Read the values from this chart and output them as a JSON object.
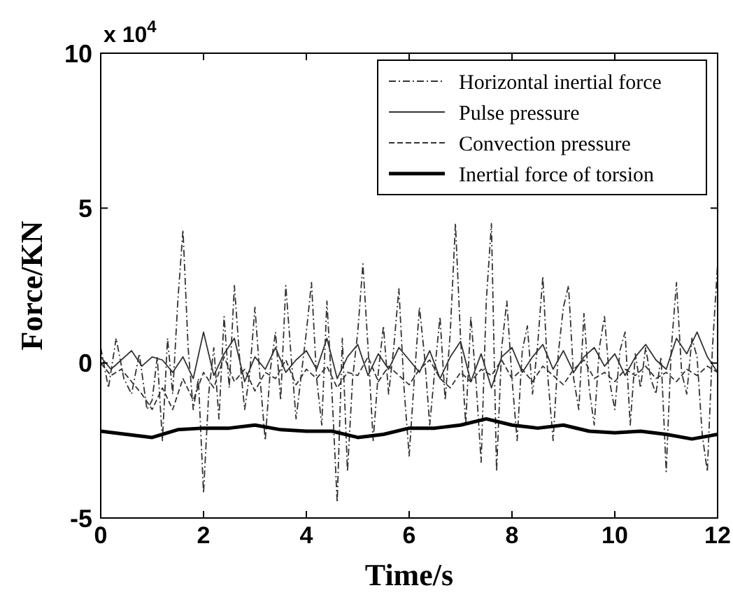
{
  "chart_data": {
    "type": "line",
    "xlabel": "Time/s",
    "ylabel": "Force/KN",
    "annotations": [
      "x 10$^{4}$"
    ],
    "xlim": [
      0,
      12
    ],
    "ylim": [
      -5,
      10
    ],
    "xticks": [
      0,
      2,
      4,
      6,
      8,
      10,
      12
    ],
    "yticks": [
      -5,
      0,
      5,
      10
    ],
    "legend": "top right",
    "grid": false,
    "series": [
      {
        "name": "Horizontal inertial force",
        "color": "#333333",
        "line_style": "dashdot",
        "x": [
          0,
          0.15,
          0.3,
          0.45,
          0.6,
          0.75,
          0.9,
          1.0,
          1.1,
          1.2,
          1.3,
          1.4,
          1.5,
          1.6,
          1.7,
          1.8,
          1.9,
          2.0,
          2.1,
          2.2,
          2.3,
          2.4,
          2.5,
          2.6,
          2.7,
          2.8,
          2.9,
          3.0,
          3.1,
          3.2,
          3.3,
          3.4,
          3.5,
          3.6,
          3.7,
          3.8,
          3.9,
          4.0,
          4.1,
          4.2,
          4.3,
          4.4,
          4.5,
          4.6,
          4.7,
          4.8,
          4.9,
          5.0,
          5.1,
          5.2,
          5.3,
          5.4,
          5.5,
          5.6,
          5.7,
          5.8,
          5.9,
          6.0,
          6.1,
          6.2,
          6.3,
          6.4,
          6.5,
          6.6,
          6.7,
          6.8,
          6.9,
          7.0,
          7.1,
          7.2,
          7.3,
          7.4,
          7.5,
          7.6,
          7.7,
          7.8,
          7.9,
          8.0,
          8.1,
          8.2,
          8.3,
          8.4,
          8.5,
          8.6,
          8.7,
          8.8,
          8.9,
          9.0,
          9.1,
          9.2,
          9.3,
          9.4,
          9.5,
          9.6,
          9.7,
          9.8,
          9.9,
          10.0,
          10.1,
          10.2,
          10.3,
          10.4,
          10.5,
          10.6,
          10.7,
          10.8,
          10.9,
          11.0,
          11.1,
          11.2,
          11.3,
          11.4,
          11.5,
          11.6,
          11.7,
          11.8,
          11.9,
          12.0
        ],
        "values": [
          0.5,
          -0.8,
          0.8,
          -0.5,
          -1.0,
          0.3,
          -1.5,
          -1.2,
          0.2,
          -2.5,
          0.8,
          -1.0,
          2.0,
          4.3,
          0.5,
          -1.5,
          -0.5,
          -4.2,
          -1.0,
          0.5,
          -1.8,
          1.5,
          -0.8,
          2.5,
          0.2,
          -1.5,
          -0.3,
          1.8,
          -0.5,
          -2.5,
          -0.2,
          1.0,
          -1.2,
          2.5,
          0.3,
          -1.8,
          -0.4,
          1.0,
          2.6,
          -0.5,
          -2.0,
          2.0,
          -1.0,
          -4.5,
          0.8,
          -3.5,
          -0.5,
          1.0,
          3.2,
          0.5,
          -2.5,
          -0.3,
          1.2,
          -1.0,
          0.5,
          2.4,
          -0.8,
          -3.0,
          -0.5,
          1.8,
          0.2,
          -2.0,
          -0.2,
          1.5,
          -1.2,
          1.0,
          4.5,
          0.8,
          -2.0,
          1.5,
          -0.6,
          -3.2,
          2.0,
          4.5,
          -3.5,
          0.5,
          2.0,
          -0.5,
          -2.5,
          0.4,
          1.2,
          -1.0,
          0.6,
          2.8,
          -0.5,
          -2.5,
          0.3,
          1.8,
          2.5,
          -0.5,
          -1.5,
          1.6,
          -0.8,
          -2.0,
          0.5,
          1.5,
          -0.6,
          -1.5,
          0.4,
          1.0,
          -2.0,
          0.3,
          -0.8,
          0.5,
          -0.5,
          -1.0,
          0.2,
          -3.5,
          0.5,
          2.6,
          -0.3,
          -1.0,
          0.8,
          0.2,
          -2.3,
          -3.5,
          0.5,
          3.2
        ]
      },
      {
        "name": "Pulse pressure",
        "color": "#333333",
        "line_style": "solid",
        "x": [
          0,
          0.2,
          0.4,
          0.6,
          0.8,
          1.0,
          1.2,
          1.4,
          1.6,
          1.8,
          2.0,
          2.2,
          2.4,
          2.6,
          2.8,
          3.0,
          3.2,
          3.4,
          3.6,
          3.8,
          4.0,
          4.2,
          4.4,
          4.6,
          4.8,
          5.0,
          5.2,
          5.4,
          5.6,
          5.8,
          6.0,
          6.2,
          6.4,
          6.6,
          6.8,
          7.0,
          7.2,
          7.4,
          7.6,
          7.8,
          8.0,
          8.2,
          8.4,
          8.6,
          8.8,
          9.0,
          9.2,
          9.4,
          9.6,
          9.8,
          10.0,
          10.2,
          10.4,
          10.6,
          10.8,
          11.0,
          11.2,
          11.4,
          11.6,
          11.8,
          12.0
        ],
        "values": [
          0.2,
          -0.2,
          0.1,
          0.4,
          -0.1,
          0.2,
          0.1,
          -0.3,
          0.2,
          -0.5,
          1.0,
          -0.4,
          0.3,
          0.8,
          -0.6,
          0.2,
          -0.2,
          0.5,
          -0.3,
          0.1,
          0.4,
          -0.2,
          0.8,
          -0.5,
          0.2,
          0.6,
          -0.4,
          0.3,
          -0.2,
          0.5,
          0.1,
          -0.3,
          0.4,
          -0.5,
          0.2,
          0.7,
          -0.6,
          0.3,
          -0.8,
          0.2,
          0.5,
          -0.3,
          0.2,
          0.6,
          -0.2,
          0.4,
          -0.3,
          0.2,
          0.5,
          -0.1,
          0.3,
          -0.4,
          0.2,
          0.6,
          0.1,
          -0.2,
          0.8,
          0.3,
          1.0,
          0.2,
          -0.3
        ]
      },
      {
        "name": "Convection pressure",
        "color": "#333333",
        "line_style": "dashed",
        "x": [
          0,
          0.2,
          0.4,
          0.6,
          0.8,
          1.0,
          1.2,
          1.4,
          1.6,
          1.8,
          2.0,
          2.2,
          2.4,
          2.6,
          2.8,
          3.0,
          3.2,
          3.4,
          3.6,
          3.8,
          4.0,
          4.2,
          4.4,
          4.6,
          4.8,
          5.0,
          5.2,
          5.4,
          5.6,
          5.8,
          6.0,
          6.2,
          6.4,
          6.6,
          6.8,
          7.0,
          7.2,
          7.4,
          7.6,
          7.8,
          8.0,
          8.2,
          8.4,
          8.6,
          8.8,
          9.0,
          9.2,
          9.4,
          9.6,
          9.8,
          10.0,
          10.2,
          10.4,
          10.6,
          10.8,
          11.0,
          11.2,
          11.4,
          11.6,
          11.8,
          12.0
        ],
        "values": [
          0,
          -0.4,
          -0.2,
          -0.6,
          -1.0,
          -1.5,
          -0.8,
          -1.5,
          -0.5,
          -1.2,
          -0.3,
          -0.8,
          0.2,
          -0.6,
          -0.2,
          -0.9,
          -0.3,
          -0.5,
          0.1,
          -0.7,
          -0.2,
          -0.5,
          -0.1,
          -0.8,
          -0.3,
          -0.4,
          0.2,
          -0.6,
          -0.1,
          -0.4,
          -0.7,
          -0.2,
          0.1,
          -0.5,
          -0.8,
          -0.3,
          -0.6,
          -0.2,
          -0.4,
          0.1,
          -0.5,
          -0.2,
          -0.6,
          -0.1,
          -0.4,
          -0.7,
          -0.2,
          0.1,
          -0.5,
          -0.3,
          -0.6,
          -0.2,
          -0.4,
          -0.1,
          -0.5,
          -0.3,
          -0.6,
          -0.2,
          -0.4,
          -0.1,
          -0.3
        ]
      },
      {
        "name": "Inertial force of torsion",
        "color": "#000000",
        "line_style": "solid",
        "x": [
          0,
          0.5,
          1.0,
          1.5,
          2.0,
          2.5,
          3.0,
          3.5,
          4.0,
          4.5,
          5.0,
          5.5,
          6.0,
          6.5,
          7.0,
          7.5,
          8.0,
          8.5,
          9.0,
          9.5,
          10.0,
          10.5,
          11.0,
          11.5,
          12.0
        ],
        "values": [
          -2.2,
          -2.3,
          -2.4,
          -2.15,
          -2.1,
          -2.1,
          -2.0,
          -2.15,
          -2.2,
          -2.2,
          -2.4,
          -2.3,
          -2.1,
          -2.1,
          -2.0,
          -1.8,
          -2.0,
          -2.1,
          -2.0,
          -2.2,
          -2.25,
          -2.2,
          -2.3,
          -2.45,
          -2.3
        ]
      }
    ]
  }
}
